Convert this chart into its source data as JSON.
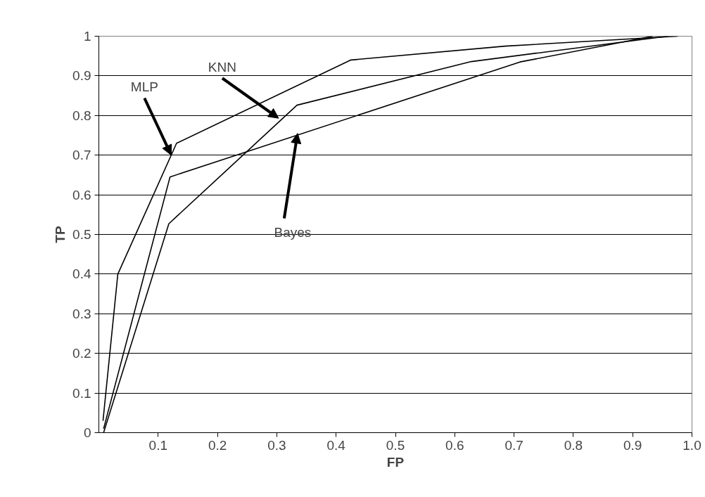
{
  "chart_data": {
    "type": "line",
    "xlabel": "FP",
    "ylabel": "TP",
    "xlim": [
      0,
      1
    ],
    "ylim": [
      0,
      1
    ],
    "xticks": [
      0.1,
      0.2,
      0.3,
      0.4,
      0.5,
      0.6,
      0.7,
      0.8,
      0.9,
      {
        "value": 1,
        "label": "1.0"
      }
    ],
    "yticks": [
      0,
      0.1,
      0.2,
      0.3,
      0.4,
      0.5,
      0.6,
      0.7,
      0.8,
      0.9,
      1
    ],
    "grid": "y",
    "marker": "none",
    "line_style": "solid",
    "series": [
      {
        "color": "#000000",
        "x": [
          0.007,
          0.032,
          0.131,
          0.425,
          0.685,
          0.976
        ],
        "values": [
          0.03,
          0.4,
          0.73,
          0.94,
          0.975,
          1.0
        ]
      },
      {
        "color": "#000000",
        "x": [
          0.008,
          0.12,
          0.71,
          0.934
        ],
        "values": [
          0.01,
          0.645,
          0.935,
          1.0
        ]
      },
      {
        "color": "#000000",
        "x": [
          0.008,
          0.118,
          0.334,
          0.628,
          0.959
        ],
        "values": [
          0.0,
          0.527,
          0.826,
          0.936,
          1.0
        ]
      }
    ],
    "annotations": [
      {
        "text": "MLP",
        "x": 0.122,
        "y": 0.7
      },
      {
        "text": "KNN",
        "x": 0.303,
        "y": 0.793
      },
      {
        "text": "Bayes",
        "x": 0.335,
        "y": 0.755
      }
    ]
  }
}
